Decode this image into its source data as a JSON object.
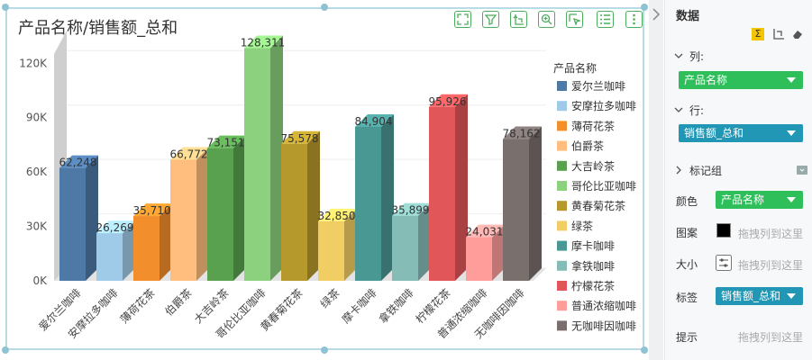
{
  "chart_title": "产品名称/销售额_总和",
  "toolbar": {
    "icons": [
      "expand-icon",
      "filter-icon",
      "sort-icon",
      "zoom-in-icon",
      "select-icon",
      "list-icon",
      "more-icon"
    ]
  },
  "chart_data": {
    "type": "bar",
    "title": "产品名称/销售额_总和",
    "categories": [
      "爱尔兰咖啡",
      "安摩拉多咖啡",
      "薄荷花茶",
      "伯爵茶",
      "大吉岭茶",
      "哥伦比亚咖啡",
      "黄春菊花茶",
      "绿茶",
      "摩卡咖啡",
      "拿铁咖啡",
      "柠檬花茶",
      "普通浓缩咖啡",
      "无咖啡因咖啡"
    ],
    "values": [
      62248,
      26269,
      35710,
      66772,
      73151,
      128311,
      75578,
      32850,
      84904,
      35899,
      95926,
      24031,
      78162
    ],
    "value_labels": [
      "62,248",
      "26,269",
      "35,710",
      "66,772",
      "73,151",
      "128,311",
      "75,578",
      "32,850",
      "84,904",
      "35,899",
      "95,926",
      "24,031",
      "78,162"
    ],
    "colors": [
      "#4e79a7",
      "#a0cbe8",
      "#f28e2b",
      "#ffbe7d",
      "#59a14f",
      "#8cd17d",
      "#b6992d",
      "#f1ce63",
      "#499894",
      "#86bcb6",
      "#e15759",
      "#ff9d9a",
      "#79706e"
    ],
    "ylim": [
      0,
      140000
    ],
    "yticks": [
      0,
      30000,
      60000,
      90000,
      120000
    ],
    "ytick_labels": [
      "0K",
      "30K",
      "60K",
      "90K",
      "120K"
    ],
    "xlabel": "",
    "ylabel": "",
    "legend_title": "产品名称",
    "legend_placement": "right",
    "grid": true
  },
  "panel": {
    "title": "数据",
    "col_label": "列:",
    "col_field": "产品名称",
    "row_label": "行:",
    "row_field": "销售额_总和",
    "marks_label": "标记组",
    "color_label": "颜色",
    "color_field": "产品名称",
    "pattern_label": "图案",
    "pattern_placeholder": "拖拽列到这里",
    "size_label": "大小",
    "size_placeholder": "拖拽列到这里",
    "tag_label": "标签",
    "tag_field": "销售额_总和",
    "tip_label": "提示",
    "tip_placeholder": "拖拽列到这里"
  }
}
